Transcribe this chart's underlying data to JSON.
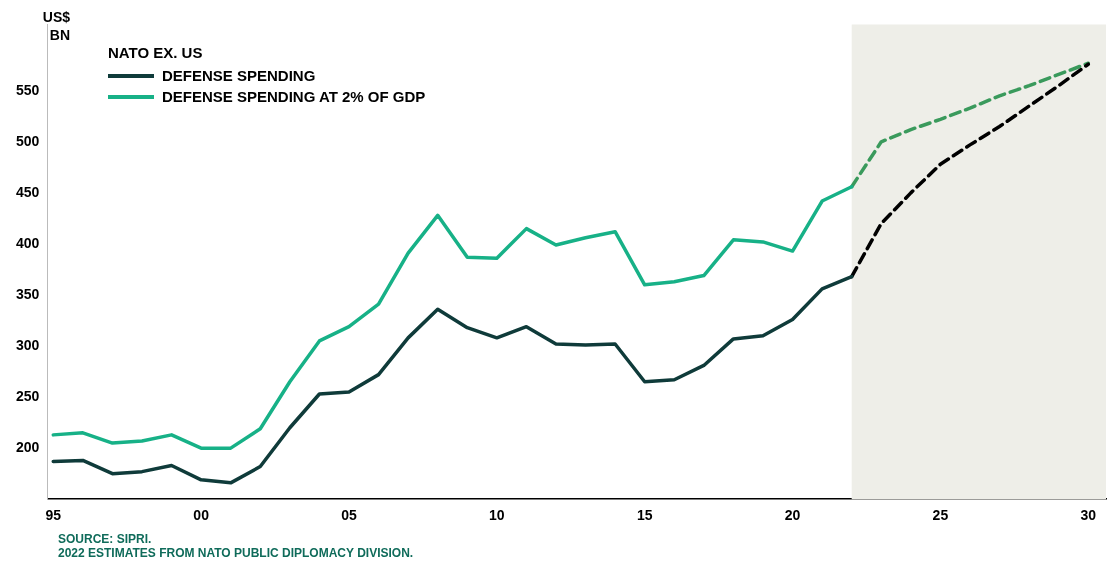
{
  "chart_data": {
    "type": "line",
    "ylabel": "US$ BN",
    "legend_title": "NATO EX. US",
    "x": [
      1995,
      1996,
      1997,
      1998,
      1999,
      2000,
      2001,
      2002,
      2003,
      2004,
      2005,
      2006,
      2007,
      2008,
      2009,
      2010,
      2011,
      2012,
      2013,
      2014,
      2015,
      2016,
      2017,
      2018,
      2019,
      2020,
      2021,
      2022
    ],
    "series": [
      {
        "name": "DEFENSE SPENDING",
        "color": "#0f3b3a",
        "line_style": "solid",
        "values": [
          187,
          188,
          175,
          177,
          183,
          169,
          166,
          182,
          220,
          253,
          255,
          272,
          308,
          336,
          318,
          308,
          319,
          302,
          301,
          302,
          265,
          267,
          281,
          307,
          310,
          326,
          356,
          368
        ]
      },
      {
        "name": "DEFENSE SPENDING AT 2% OF GDP",
        "color": "#17b187",
        "line_style": "solid",
        "values": [
          213,
          215,
          205,
          207,
          213,
          200,
          200,
          219,
          265,
          305,
          319,
          341,
          391,
          428,
          387,
          386,
          415,
          399,
          406,
          412,
          360,
          363,
          369,
          404,
          402,
          393,
          442,
          456
        ]
      },
      {
        "color": "#000000",
        "line_style": "dashed",
        "x": [
          2022,
          2023,
          2024,
          2025,
          2026,
          2027,
          2028,
          2029,
          2030
        ],
        "values": [
          368,
          420,
          450,
          478,
          497,
          515,
          535,
          555,
          576
        ]
      },
      {
        "color": "#3a9a5c",
        "line_style": "dashed",
        "x": [
          2022,
          2023,
          2024,
          2025,
          2026,
          2027,
          2028,
          2029,
          2030
        ],
        "values": [
          456,
          500,
          512,
          522,
          533,
          545,
          555,
          566,
          577
        ]
      }
    ],
    "xlim": [
      1994.8,
      2030.6
    ],
    "xticks": [
      {
        "value": 1995,
        "label": "95"
      },
      {
        "value": 2000,
        "label": "00"
      },
      {
        "value": 2005,
        "label": "05"
      },
      {
        "value": 2010,
        "label": "10"
      },
      {
        "value": 2015,
        "label": "15"
      },
      {
        "value": 2020,
        "label": "20"
      },
      {
        "value": 2025,
        "label": "25"
      },
      {
        "value": 2030,
        "label": "30"
      }
    ],
    "ylim": [
      150,
      615
    ],
    "yticks": [
      200,
      250,
      300,
      350,
      400,
      450,
      500,
      550
    ],
    "bands": [
      {
        "axis": "x",
        "from": 2022,
        "to": 2030.6,
        "color": "#eeeee8"
      }
    ],
    "grid": false,
    "legend": "top left",
    "annotations": [
      "SOURCE: SIPRI.",
      "2022 ESTIMATES FROM NATO PUBLIC DIPLOMACY DIVISION."
    ]
  }
}
